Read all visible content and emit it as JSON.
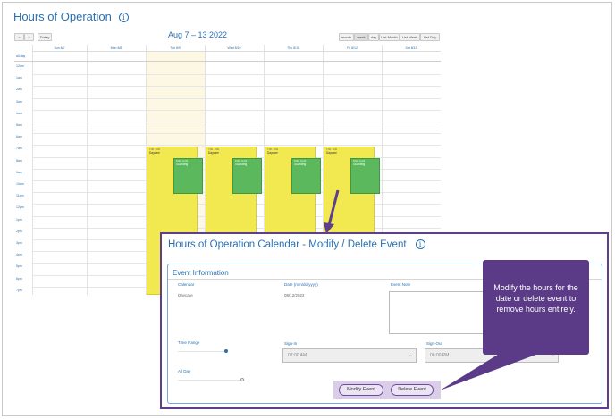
{
  "page": {
    "title": "Hours of Operation"
  },
  "calendar": {
    "prev_label": "<",
    "next_label": ">",
    "today_label": "Today",
    "date_range": "Aug 7 – 13 2022",
    "views": [
      {
        "label": "month"
      },
      {
        "label": "week"
      },
      {
        "label": "day"
      },
      {
        "label": "List Month"
      },
      {
        "label": "List Week"
      },
      {
        "label": "List Day"
      }
    ],
    "days": [
      "Sun 8/7",
      "Mon 8/8",
      "Tue 8/9",
      "Wed 8/10",
      "Thu 8/11",
      "Fri 8/12",
      "Sat 8/13"
    ],
    "allday_label": "all-day",
    "times": [
      "12am",
      "1am",
      "2am",
      "3am",
      "4am",
      "5am",
      "6am",
      "7am",
      "8am",
      "9am",
      "10am",
      "11am",
      "12pm",
      "1pm",
      "2pm",
      "3pm",
      "4pm",
      "5pm",
      "6pm",
      "7pm"
    ],
    "daycare_event": {
      "time": "7:00 - 6:00",
      "title": "Daycare"
    },
    "green_event": {
      "time": "8:00 - 11:00",
      "title": "Guarding"
    }
  },
  "modal": {
    "title": "Hours of Operation Calendar - Modify / Delete Event",
    "section_title": "Event Information",
    "calendar_label": "Calendar",
    "calendar_value": "Daycare",
    "date_label": "Date (mm/dd/yyyy)",
    "date_value": "08/12/2022",
    "note_label": "Event Note",
    "time_range_label": "Time Range",
    "signin_label": "Sign-In",
    "signin_value": "07:00 AM",
    "signout_label": "Sign-Out",
    "signout_value": "06:00 PM",
    "allday_label": "All Day",
    "modify_label": "Modify Event",
    "delete_label": "Delete Event"
  },
  "callout": {
    "text": "Modify the hours for the date or delete event to remove hours entirely."
  },
  "colors": {
    "accent": "#2a6fb0",
    "purple": "#5b3b87",
    "daycare": "#f2e84f",
    "green": "#5cb85c"
  }
}
